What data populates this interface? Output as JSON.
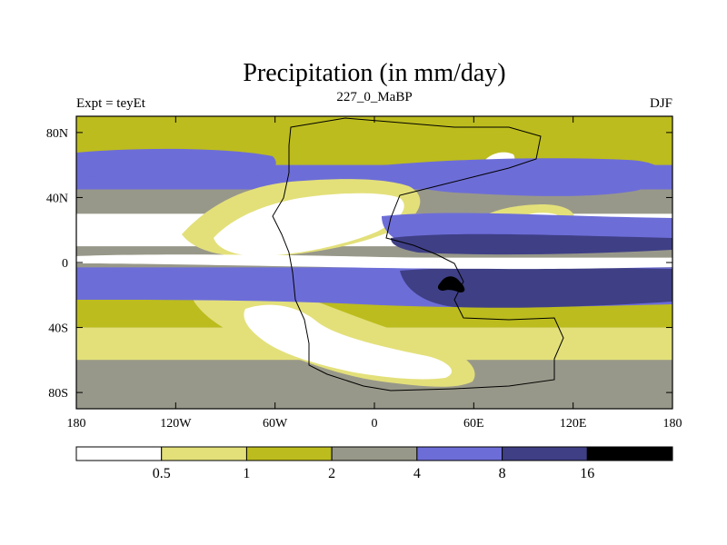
{
  "chart_data": {
    "type": "heatmap",
    "title": "Precipitation (in mm/day)",
    "left_string": "Expt = teyEt",
    "center_string": "227_0_MaBP",
    "right_string": "DJF",
    "x_tick_labels": [
      "180",
      "120W",
      "60W",
      "0",
      "60E",
      "120E",
      "180"
    ],
    "x_tick_values": [
      -180,
      -120,
      -60,
      0,
      60,
      120,
      180
    ],
    "y_tick_labels": [
      "80N",
      "40N",
      "0",
      "40S",
      "80S"
    ],
    "y_tick_values": [
      80,
      40,
      0,
      -40,
      -80
    ],
    "xlim": [
      -180,
      180
    ],
    "ylim": [
      -90,
      90
    ],
    "colorbar": {
      "levels": [
        "0.5",
        "1",
        "2",
        "4",
        "8",
        "16"
      ],
      "colors": [
        "#ffffff",
        "#e3e07a",
        "#bcbc1e",
        "#98988a",
        "#6d6dd8",
        "#3f3f86",
        "#000000"
      ]
    },
    "precip_bands": [
      {
        "lat_range": [
          60,
          90
        ],
        "value": 1.5
      },
      {
        "lat_range": [
          45,
          60
        ],
        "value": 5
      },
      {
        "lat_range": [
          30,
          45
        ],
        "value": 2.5
      },
      {
        "lat_range": [
          10,
          30
        ],
        "value": 0.4
      },
      {
        "lat_range": [
          0,
          3
        ],
        "value": 0.4
      },
      {
        "lat_range": [
          -20,
          -3
        ],
        "value": 6
      },
      {
        "lat_range": [
          -40,
          -20
        ],
        "value": 1.5
      },
      {
        "lat_range": [
          -60,
          -40
        ],
        "value": 0.6
      },
      {
        "lat_range": [
          -90,
          -60
        ],
        "value": 3
      }
    ]
  }
}
